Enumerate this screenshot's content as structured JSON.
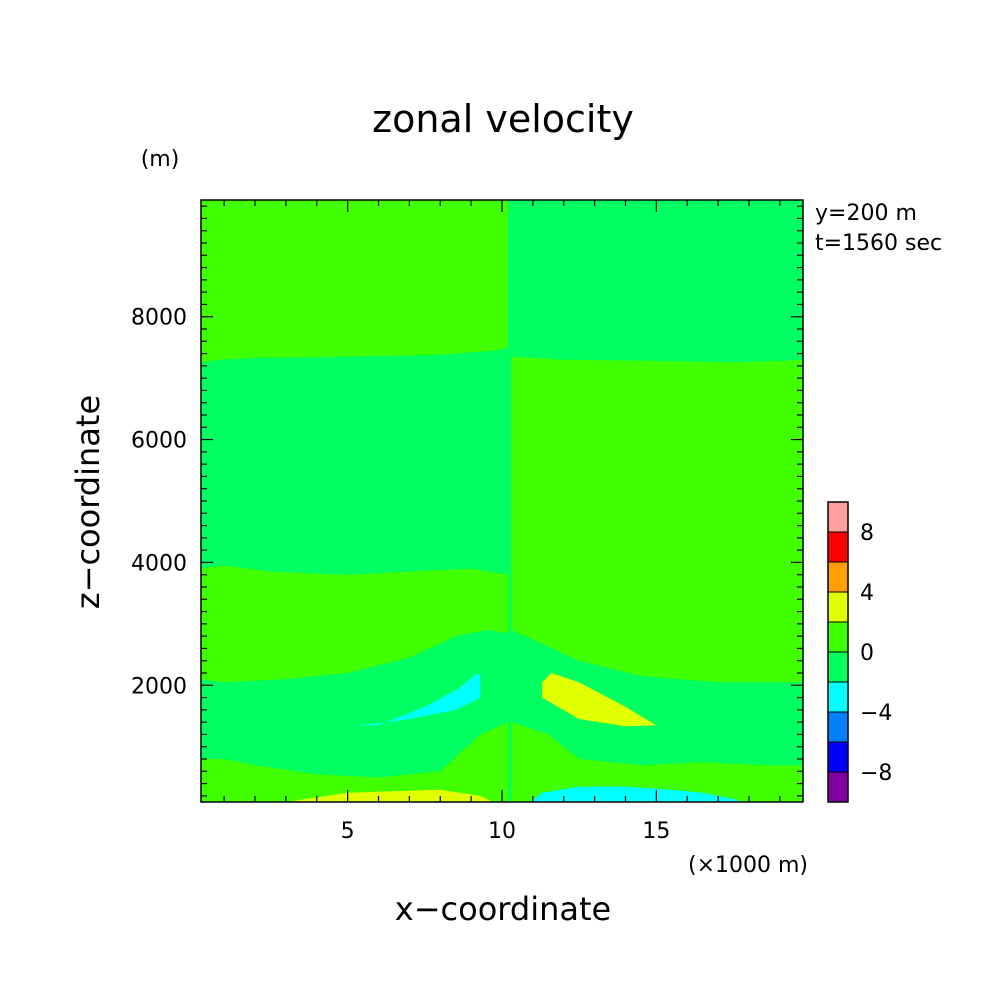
{
  "chart_data": {
    "type": "heatmap",
    "title": "zonal velocity",
    "xlabel": "x−coordinate",
    "ylabel": "z−coordinate",
    "x_unit": "(×1000 m)",
    "y_unit": "(m)",
    "annotations": [
      "y=200 m",
      "t=1560 sec"
    ],
    "xlim": [
      0.25,
      19.75
    ],
    "ylim": [
      100,
      9900
    ],
    "xticks": [
      5,
      10,
      15
    ],
    "yticks": [
      2000,
      4000,
      6000,
      8000
    ],
    "colorbar": {
      "levels": [
        -10,
        -8,
        -6,
        -4,
        -2,
        0,
        2,
        4,
        6,
        8,
        10
      ],
      "tick_labels": [
        "−8",
        "−4",
        "0",
        "4",
        "8"
      ],
      "tick_values": [
        -8,
        -4,
        0,
        4,
        8
      ],
      "colors": [
        "#8000a0",
        "#0000ff",
        "#0080ff",
        "#00ffff",
        "#00ff60",
        "#40ff00",
        "#e0ff00",
        "#ffa000",
        "#ff0000",
        "#ffa0a0"
      ]
    },
    "regions": [
      {
        "level": "0 to 2",
        "color": "#40ff00",
        "points": [
          [
            0.25,
            9900
          ],
          [
            10.2,
            9900
          ],
          [
            10.2,
            7500
          ],
          [
            9.8,
            7450
          ],
          [
            8,
            7380
          ],
          [
            5,
            7350
          ],
          [
            2,
            7330
          ],
          [
            0.8,
            7300
          ],
          [
            0.25,
            7250
          ]
        ]
      },
      {
        "level": "0 to 2",
        "color": "#40ff00",
        "points": [
          [
            10.3,
            7350
          ],
          [
            12,
            7300
          ],
          [
            15,
            7280
          ],
          [
            17.5,
            7260
          ],
          [
            19,
            7280
          ],
          [
            19.75,
            7300
          ],
          [
            19.75,
            5100
          ],
          [
            19.3,
            5100
          ],
          [
            10.3,
            5100
          ]
        ]
      },
      {
        "level": "0 to 2",
        "color": "#40ff00",
        "points": [
          [
            0.25,
            3900
          ],
          [
            1,
            3950
          ],
          [
            2.5,
            3850
          ],
          [
            5,
            3800
          ],
          [
            7,
            3850
          ],
          [
            9,
            3900
          ],
          [
            10.2,
            3800
          ],
          [
            10.2,
            2850
          ],
          [
            9.5,
            2900
          ],
          [
            8.5,
            2800
          ],
          [
            7,
            2450
          ],
          [
            5,
            2200
          ],
          [
            3,
            2100
          ],
          [
            1,
            2050
          ],
          [
            0.25,
            2100
          ]
        ]
      },
      {
        "level": "0 to 2",
        "color": "#40ff00",
        "points": [
          [
            10.3,
            3700
          ],
          [
            11,
            3850
          ],
          [
            13,
            3850
          ],
          [
            15.5,
            3850
          ],
          [
            17.5,
            3750
          ],
          [
            19,
            3900
          ],
          [
            19.75,
            3900
          ],
          [
            19.75,
            5100
          ],
          [
            10.3,
            5100
          ]
        ]
      },
      {
        "level": "0 to 2",
        "color": "#40ff00",
        "points": [
          [
            10.3,
            2900
          ],
          [
            11.2,
            2700
          ],
          [
            12.5,
            2400
          ],
          [
            14.5,
            2150
          ],
          [
            17,
            2050
          ],
          [
            19.75,
            2050
          ],
          [
            19.75,
            3900
          ],
          [
            19,
            3900
          ],
          [
            17.5,
            3750
          ],
          [
            15.5,
            3850
          ],
          [
            13,
            3850
          ],
          [
            11,
            3850
          ],
          [
            10.3,
            3700
          ]
        ]
      },
      {
        "level": "0 to 2",
        "color": "#40ff00",
        "points": [
          [
            0.25,
            800
          ],
          [
            1,
            800
          ],
          [
            2,
            700
          ],
          [
            4,
            550
          ],
          [
            6,
            500
          ],
          [
            8,
            600
          ],
          [
            9.3,
            1200
          ],
          [
            10.2,
            1400
          ],
          [
            10.2,
            100
          ],
          [
            0.25,
            100
          ]
        ]
      },
      {
        "level": "0 to 2",
        "color": "#40ff00",
        "points": [
          [
            10.3,
            1400
          ],
          [
            11.5,
            1200
          ],
          [
            12.5,
            800
          ],
          [
            14.5,
            700
          ],
          [
            16.5,
            750
          ],
          [
            18.5,
            700
          ],
          [
            19.75,
            700
          ],
          [
            19.75,
            100
          ],
          [
            10.3,
            100
          ]
        ]
      },
      {
        "level": "2 to 4",
        "color": "#e0ff00",
        "points": [
          [
            3,
            100
          ],
          [
            5,
            250
          ],
          [
            8,
            300
          ],
          [
            9.3,
            200
          ],
          [
            9.7,
            100
          ]
        ]
      },
      {
        "level": "2 to 4",
        "color": "#e0ff00",
        "points": [
          [
            11.3,
            2050
          ],
          [
            11.6,
            2200
          ],
          [
            12.5,
            2050
          ],
          [
            14,
            1650
          ],
          [
            15,
            1350
          ],
          [
            14,
            1330
          ],
          [
            12.5,
            1450
          ],
          [
            11.3,
            1800
          ]
        ]
      },
      {
        "level": "-2 to -4",
        "color": "#00ffff",
        "points": [
          [
            5.2,
            1350
          ],
          [
            6,
            1350
          ],
          [
            7.5,
            1650
          ],
          [
            8.6,
            1950
          ],
          [
            9.2,
            2200
          ],
          [
            9.3,
            2150
          ],
          [
            9.3,
            1800
          ],
          [
            8.5,
            1600
          ],
          [
            7,
            1450
          ],
          [
            6,
            1380
          ]
        ]
      },
      {
        "level": "-2 to -4",
        "color": "#00ffff",
        "points": [
          [
            10.9,
            100
          ],
          [
            11.3,
            250
          ],
          [
            12.5,
            350
          ],
          [
            14,
            350
          ],
          [
            15.5,
            300
          ],
          [
            16.5,
            250
          ],
          [
            17.5,
            150
          ],
          [
            17.8,
            100
          ]
        ]
      }
    ]
  }
}
